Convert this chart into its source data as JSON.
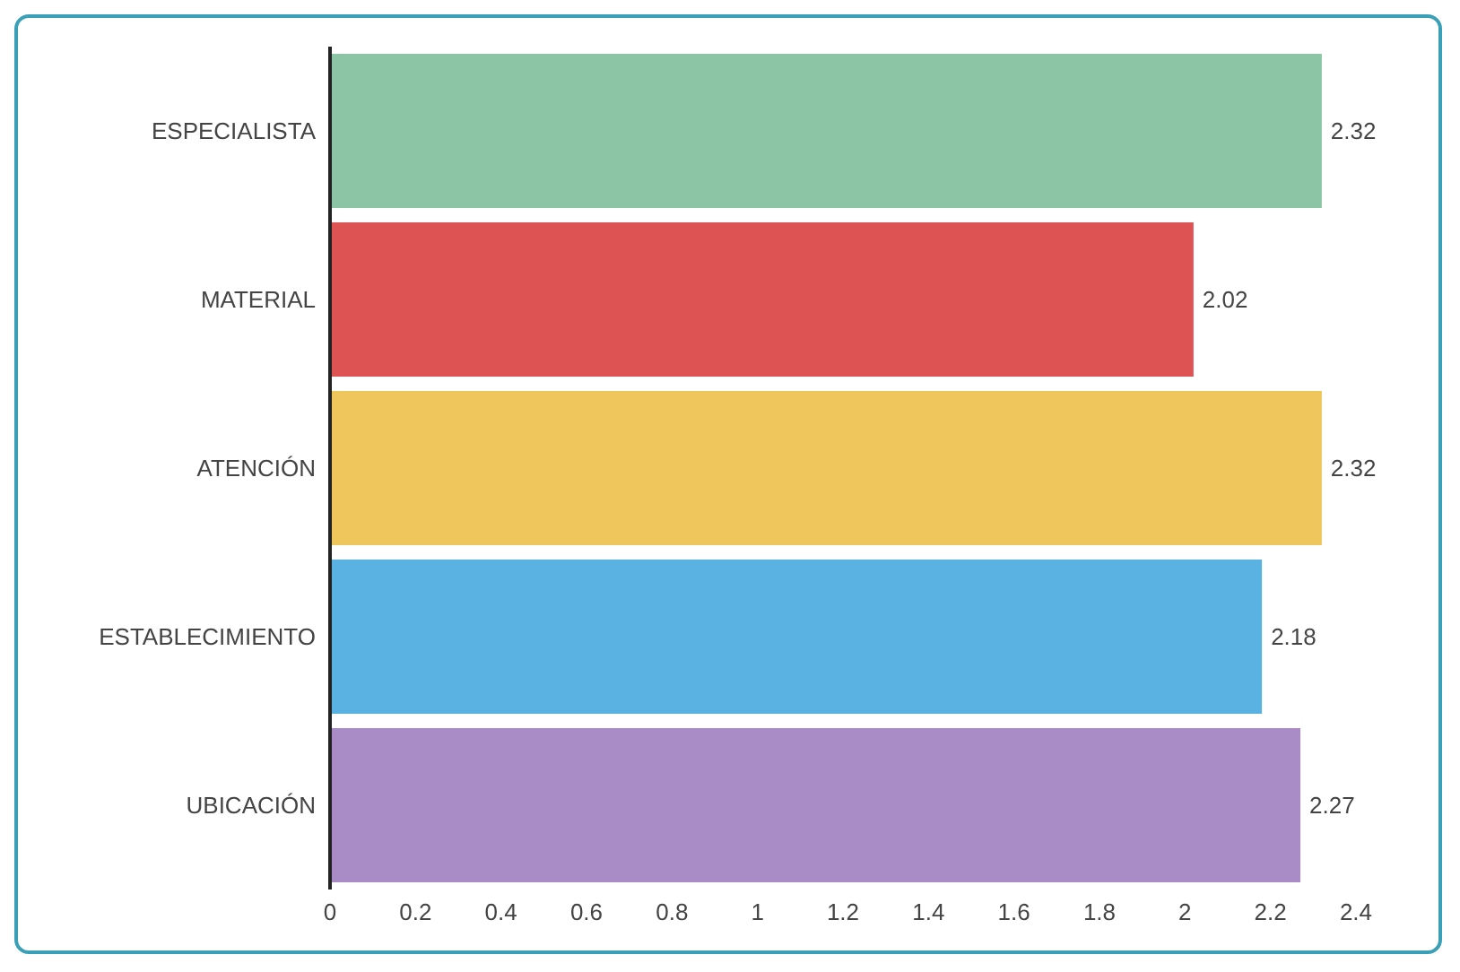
{
  "chart_data": {
    "type": "bar",
    "orientation": "horizontal",
    "categories": [
      "ESPECIALISTA",
      "MATERIAL",
      "ATENCIÓN",
      "ESTABLECIMIENTO",
      "UBICACIÓN"
    ],
    "values": [
      2.32,
      2.02,
      2.32,
      2.18,
      2.27
    ],
    "colors": [
      "#8cc5a5",
      "#dd5252",
      "#eec65c",
      "#5ab2e2",
      "#a98bc6"
    ],
    "xlim": [
      0,
      2.4
    ],
    "xticks": [
      0,
      0.2,
      0.4,
      0.6,
      0.8,
      1,
      1.2,
      1.4,
      1.6,
      1.8,
      2,
      2.2,
      2.4
    ],
    "data_labels": true,
    "grid": false
  }
}
